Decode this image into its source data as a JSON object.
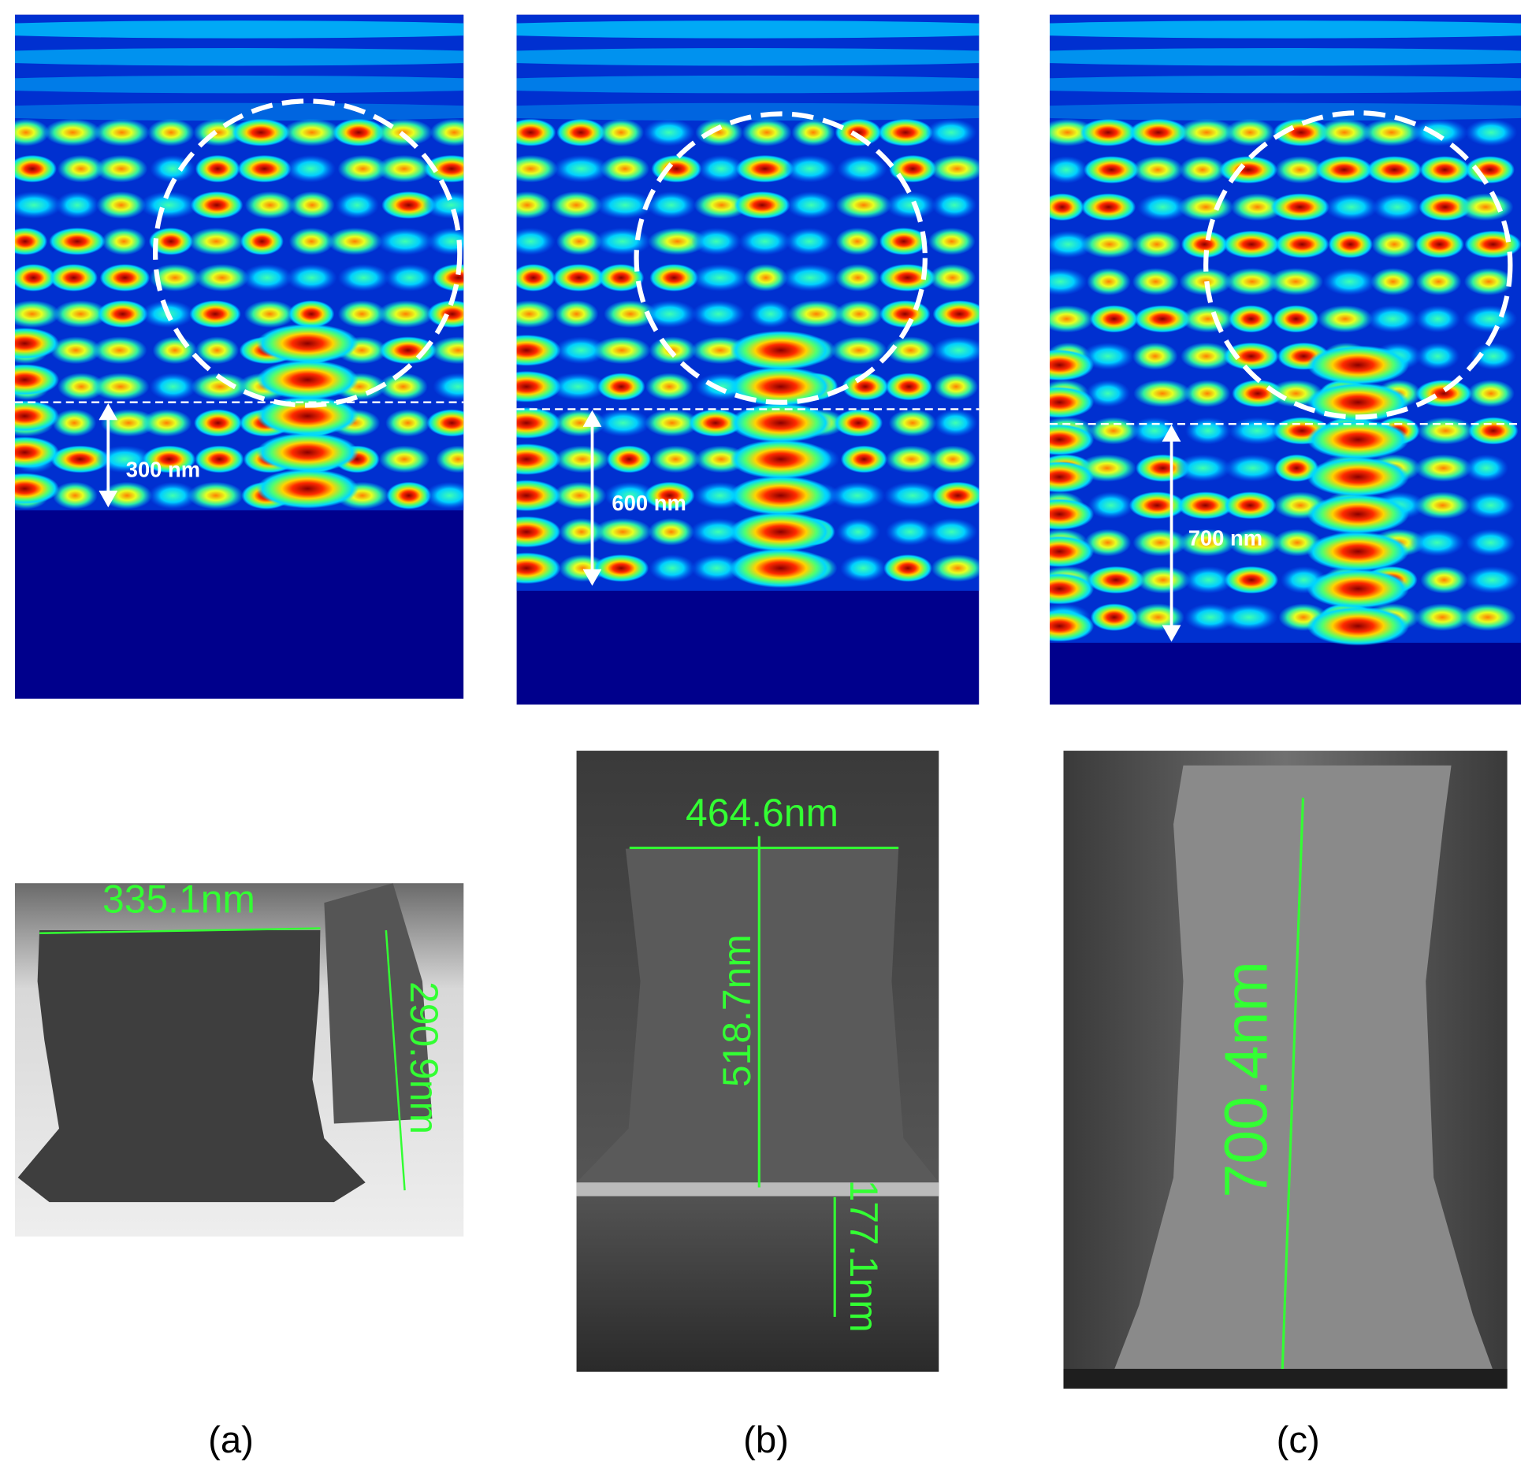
{
  "panels": [
    {
      "label": "(a)",
      "field_label": "300 nm",
      "sem_labels": [
        "335.1nm",
        "290.9nm"
      ]
    },
    {
      "label": "(b)",
      "field_label": "600 nm",
      "sem_labels": [
        "464.6nm",
        "518.7nm",
        "177.1nm"
      ]
    },
    {
      "label": "(c)",
      "field_label": "700 nm",
      "sem_labels": [
        "700.4nm"
      ]
    }
  ]
}
